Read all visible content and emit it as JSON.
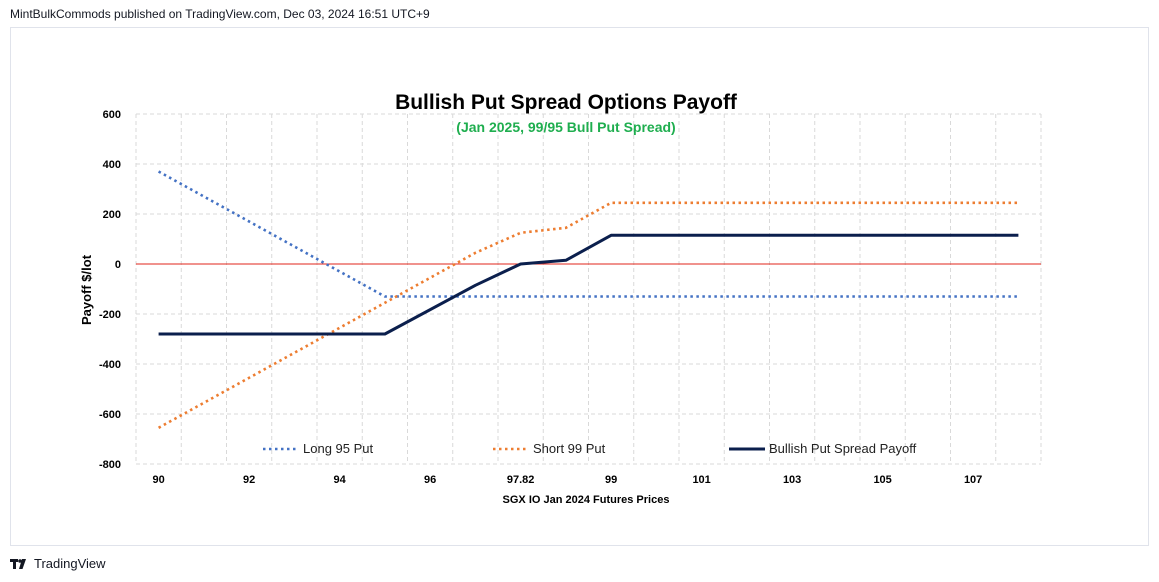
{
  "header": {
    "publisher_line": "MintBulkCommods published on TradingView.com, Dec 03, 2024 16:51 UTC+9"
  },
  "footer": {
    "brand": "TradingView",
    "logo_icon": "tradingview-logo-icon"
  },
  "chart_data": {
    "type": "line",
    "title": "Bullish Put Spread Options Payoff",
    "subtitle": "(Jan 2025, 99/95 Bull Put Spread)",
    "xlabel": "SGX IO Jan 2024 Futures Prices",
    "ylabel": "Payoff $/lot",
    "x_ticks": [
      "90",
      "92",
      "94",
      "96",
      "97.82",
      "99",
      "101",
      "103",
      "105",
      "107"
    ],
    "y_ticks": [
      600,
      400,
      200,
      0,
      -200,
      -400,
      -600,
      -800
    ],
    "ylim": [
      -800,
      600
    ],
    "grid": true,
    "zero_line": true,
    "legend_placement": "bottom-inside",
    "series": [
      {
        "name": "Long 95 Put",
        "style": "dotted",
        "color": "#4472c4",
        "points": [
          [
            0,
            370
          ],
          [
            5,
            -130
          ],
          [
            19,
            -130
          ]
        ]
      },
      {
        "name": "Short 99 Put",
        "style": "dotted",
        "color": "#ed7d31",
        "points": [
          [
            0,
            -655
          ],
          [
            7,
            45
          ],
          [
            8,
            125
          ],
          [
            9,
            145
          ],
          [
            10,
            245
          ],
          [
            19,
            245
          ]
        ]
      },
      {
        "name": "Bullish Put Spread Payoff",
        "style": "solid",
        "color": "#0b1f4d",
        "points": [
          [
            0,
            -280
          ],
          [
            5,
            -280
          ],
          [
            7,
            -85
          ],
          [
            8,
            0
          ],
          [
            9,
            15
          ],
          [
            10,
            115
          ],
          [
            19,
            115
          ]
        ]
      }
    ]
  }
}
